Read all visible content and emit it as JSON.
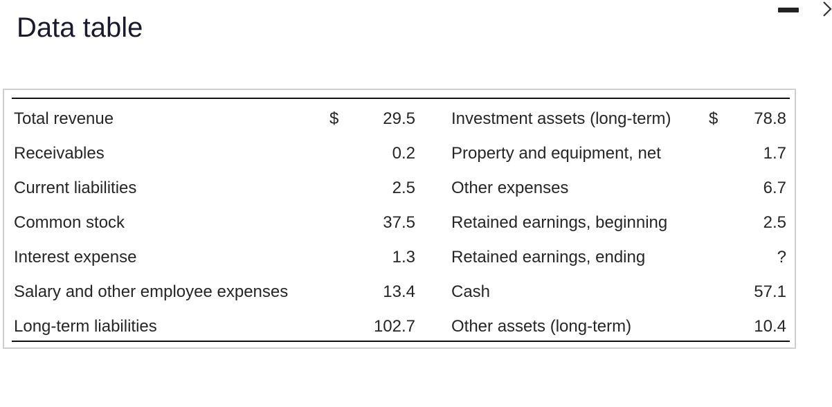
{
  "title": "Data table",
  "window_controls": {
    "minimize_icon": "minimize-icon",
    "close_icon": "close-icon"
  },
  "rows": [
    {
      "label1": "Total revenue",
      "dollar1": "$",
      "value1": "29.5",
      "label2": "Investment assets (long-term)",
      "dollar2": "$",
      "value2": "78.8"
    },
    {
      "label1": "Receivables",
      "dollar1": "",
      "value1": "0.2",
      "label2": "Property and equipment, net",
      "dollar2": "",
      "value2": "1.7"
    },
    {
      "label1": "Current liabilities",
      "dollar1": "",
      "value1": "2.5",
      "label2": "Other expenses",
      "dollar2": "",
      "value2": "6.7"
    },
    {
      "label1": "Common stock",
      "dollar1": "",
      "value1": "37.5",
      "label2": "Retained earnings, beginning",
      "dollar2": "",
      "value2": "2.5"
    },
    {
      "label1": "Interest expense",
      "dollar1": "",
      "value1": "1.3",
      "label2": "Retained earnings, ending",
      "dollar2": "",
      "value2": "?"
    },
    {
      "label1": "Salary and other employee expenses",
      "dollar1": "",
      "value1": "13.4",
      "label2": "Cash",
      "dollar2": "",
      "value2": "57.1"
    },
    {
      "label1": "Long-term liabilities",
      "dollar1": "",
      "value1": "102.7",
      "label2": "Other assets (long-term)",
      "dollar2": "",
      "value2": "10.4"
    }
  ]
}
